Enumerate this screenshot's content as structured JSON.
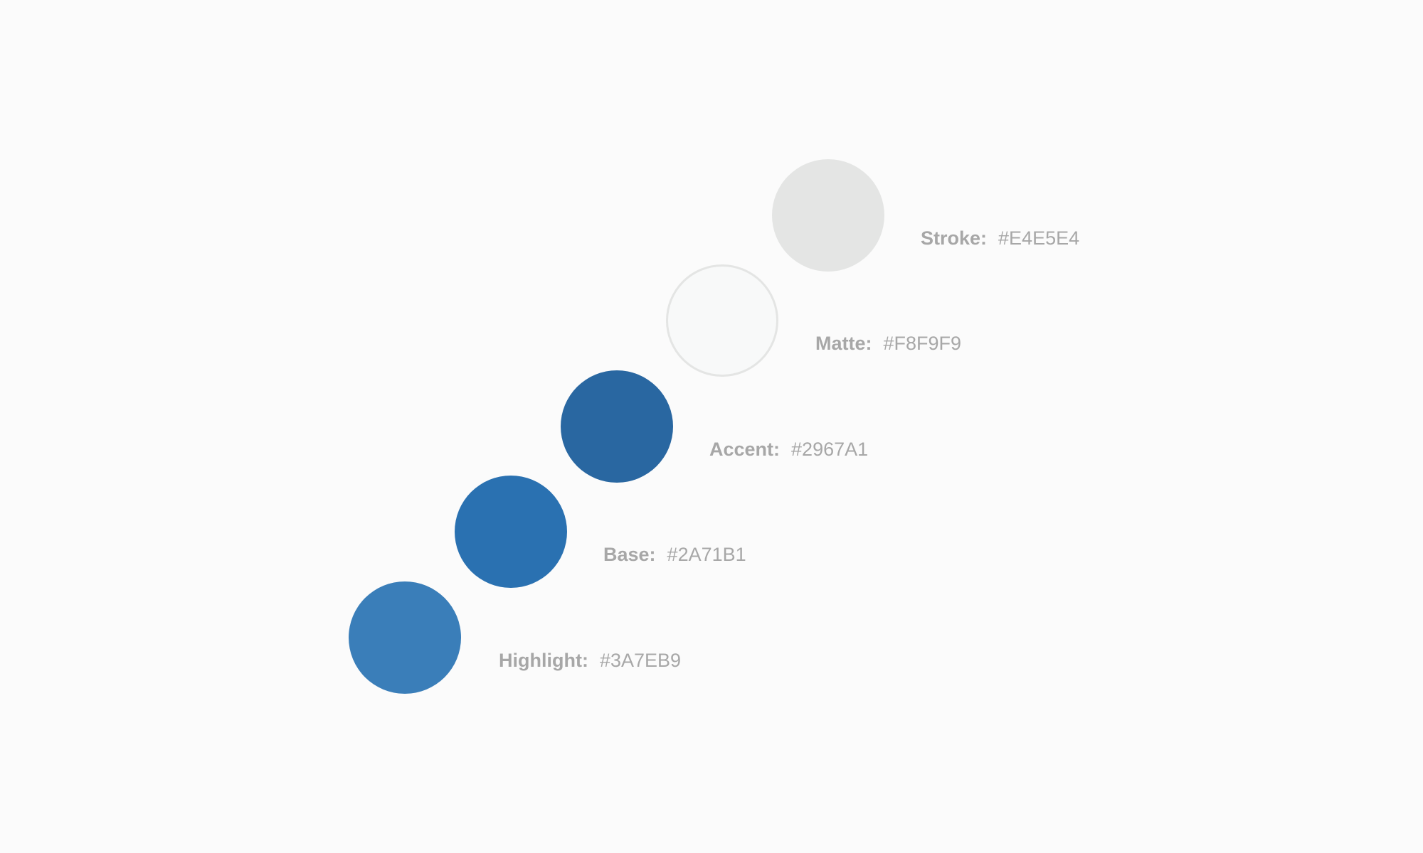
{
  "swatches": [
    {
      "name": "Stroke:",
      "hex": "#E4E5E4",
      "color": "#E4E5E4",
      "outlined": false
    },
    {
      "name": "Matte:",
      "hex": "#F8F9F9",
      "color": "#F8F9F9",
      "outlined": true
    },
    {
      "name": "Accent:",
      "hex": "#2967A1",
      "color": "#2967A1",
      "outlined": false
    },
    {
      "name": "Base:",
      "hex": "#2A71B1",
      "color": "#2A71B1",
      "outlined": false
    },
    {
      "name": "Highlight:",
      "hex": "#3A7EB9",
      "color": "#3A7EB9",
      "outlined": false
    }
  ]
}
